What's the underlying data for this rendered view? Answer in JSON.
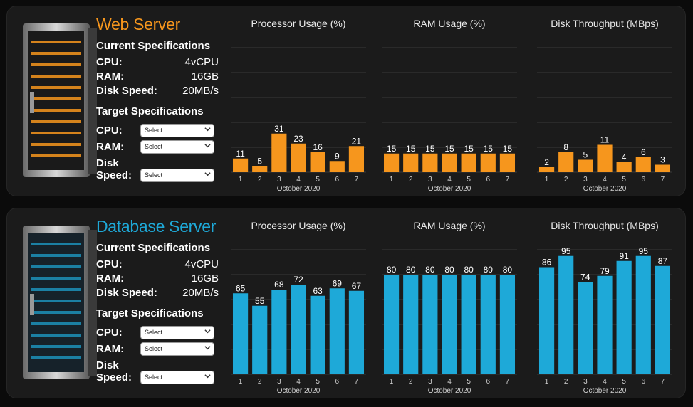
{
  "colors": {
    "web_accent": "#f6961d",
    "db_accent": "#1ea9d8",
    "panel_bg": "#1b1b1b",
    "grid": "#3a3a3a"
  },
  "web_server": {
    "title": "Web Server",
    "current_specs": {
      "heading": "Current Specifications",
      "cpu_label": "CPU:",
      "cpu_value": "4vCPU",
      "ram_label": "RAM:",
      "ram_value": "16GB",
      "disk_label": "Disk Speed:",
      "disk_value": "20MB/s"
    },
    "target_specs": {
      "heading": "Target Specifications",
      "cpu_label": "CPU:",
      "cpu_select": "Select",
      "ram_label": "RAM:",
      "ram_select": "Select",
      "disk_label_1": "Disk",
      "disk_label_2": "Speed:",
      "disk_select": "Select"
    }
  },
  "database_server": {
    "title": "Database Server",
    "current_specs": {
      "heading": "Current Specifications",
      "cpu_label": "CPU:",
      "cpu_value": "4vCPU",
      "ram_label": "RAM:",
      "ram_value": "16GB",
      "disk_label": "Disk Speed:",
      "disk_value": "20MB/s"
    },
    "target_specs": {
      "heading": "Target Specifications",
      "cpu_label": "CPU:",
      "cpu_select": "Select",
      "ram_label": "RAM:",
      "ram_select": "Select",
      "disk_label_1": "Disk",
      "disk_label_2": "Speed:",
      "disk_select": "Select"
    }
  },
  "chart_data": [
    {
      "id": "web-cpu",
      "type": "bar",
      "title": "Processor Usage (%)",
      "categories": [
        "1",
        "2",
        "3",
        "4",
        "5",
        "6",
        "7"
      ],
      "values": [
        11,
        5,
        31,
        23,
        16,
        9,
        21
      ],
      "xlabel": "October 2020",
      "ylim": [
        0,
        100
      ],
      "grid": true,
      "color": "#f6961d"
    },
    {
      "id": "web-ram",
      "type": "bar",
      "title": "RAM Usage (%)",
      "categories": [
        "1",
        "2",
        "3",
        "4",
        "5",
        "6",
        "7"
      ],
      "values": [
        15,
        15,
        15,
        15,
        15,
        15,
        15
      ],
      "xlabel": "October 2020",
      "ylim": [
        0,
        100
      ],
      "grid": true,
      "color": "#f6961d"
    },
    {
      "id": "web-disk",
      "type": "bar",
      "title": "Disk Throughput (MBps)",
      "categories": [
        "1",
        "2",
        "3",
        "4",
        "5",
        "6",
        "7"
      ],
      "values": [
        2,
        8,
        5,
        11,
        4,
        6,
        3
      ],
      "xlabel": "October 2020",
      "ylim": [
        0,
        50
      ],
      "grid": true,
      "color": "#f6961d"
    },
    {
      "id": "db-cpu",
      "type": "bar",
      "title": "Processor Usage (%)",
      "categories": [
        "1",
        "2",
        "3",
        "4",
        "5",
        "6",
        "7"
      ],
      "values": [
        65,
        55,
        68,
        72,
        63,
        69,
        67
      ],
      "xlabel": "October 2020",
      "ylim": [
        0,
        100
      ],
      "grid": true,
      "color": "#1ea9d8"
    },
    {
      "id": "db-ram",
      "type": "bar",
      "title": "RAM Usage (%)",
      "categories": [
        "1",
        "2",
        "3",
        "4",
        "5",
        "6",
        "7"
      ],
      "values": [
        80,
        80,
        80,
        80,
        80,
        80,
        80
      ],
      "xlabel": "October 2020",
      "ylim": [
        0,
        100
      ],
      "grid": true,
      "color": "#1ea9d8"
    },
    {
      "id": "db-disk",
      "type": "bar",
      "title": "Disk Throughput (MBps)",
      "categories": [
        "1",
        "2",
        "3",
        "4",
        "5",
        "6",
        "7"
      ],
      "values": [
        86,
        95,
        74,
        79,
        91,
        95,
        87
      ],
      "xlabel": "October 2020",
      "ylim": [
        0,
        100
      ],
      "grid": true,
      "color": "#1ea9d8"
    }
  ]
}
